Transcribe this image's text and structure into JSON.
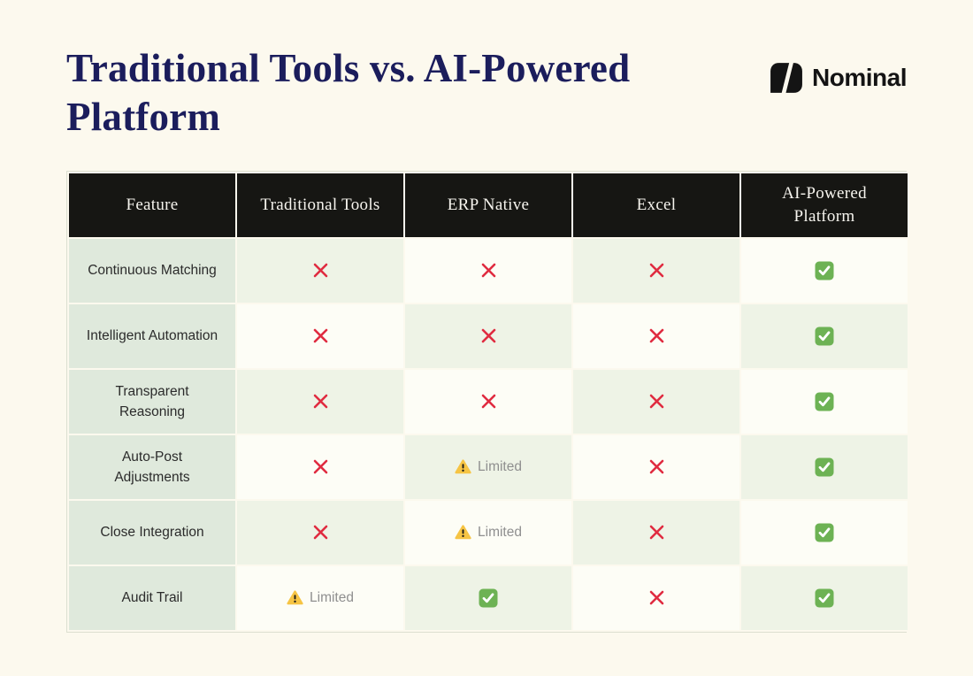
{
  "header": {
    "title": "Traditional Tools vs. AI-Powered Platform",
    "brand": "Nominal"
  },
  "chart_data": {
    "type": "table",
    "title": "Traditional Tools vs. AI-Powered Platform",
    "columns": [
      "Feature",
      "Traditional Tools",
      "ERP Native",
      "Excel",
      "AI-Powered Platform"
    ],
    "rows": [
      {
        "feature": "Continuous Matching",
        "values": [
          "no",
          "no",
          "no",
          "yes"
        ]
      },
      {
        "feature": "Intelligent Automation",
        "values": [
          "no",
          "no",
          "no",
          "yes"
        ]
      },
      {
        "feature": "Transparent Reasoning",
        "values": [
          "no",
          "no",
          "no",
          "yes"
        ]
      },
      {
        "feature": "Auto-Post Adjustments",
        "values": [
          "no",
          "limited",
          "no",
          "yes"
        ]
      },
      {
        "feature": "Close Integration",
        "values": [
          "no",
          "limited",
          "no",
          "yes"
        ]
      },
      {
        "feature": "Audit Trail",
        "values": [
          "limited",
          "yes",
          "no",
          "yes"
        ]
      }
    ],
    "limited_label": "Limited",
    "value_legend": {
      "yes": "supported — green check icon",
      "no": "not supported — red cross icon",
      "limited": "partially supported — warning icon with Limited label"
    }
  },
  "colors": {
    "page_background": "#fcf9ee",
    "title_navy": "#1b1d5c",
    "header_bg": "#161613",
    "header_text": "#f6f4ee",
    "feature_column_bg": "#dfe9dc",
    "cell_green_tint": "#eef3e6",
    "cell_cream": "#fdfdf6",
    "cross_red": "#e02b40",
    "check_green": "#6db254",
    "warning_yellow": "#f6c444",
    "limited_text_gray": "#8f8f8f",
    "brand_black": "#141414"
  }
}
